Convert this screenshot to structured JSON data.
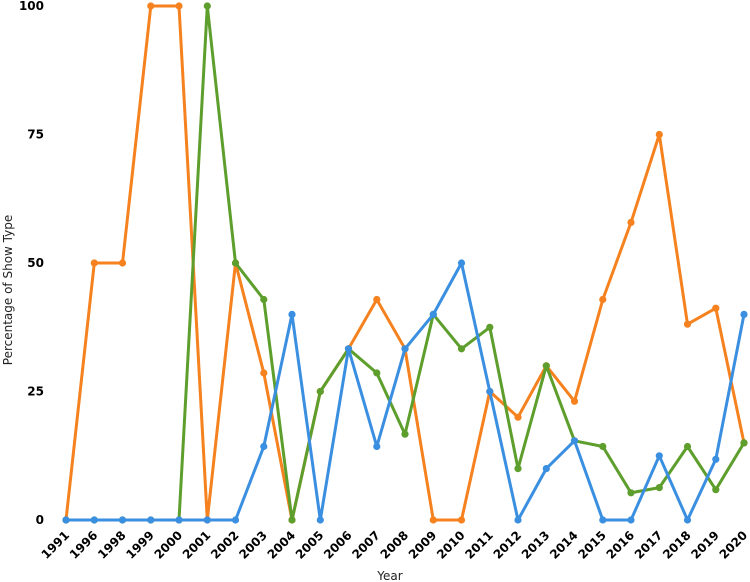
{
  "chart_data": {
    "type": "line",
    "title": "",
    "xlabel": "Year",
    "ylabel": "Percentage of Show Type",
    "ylim": [
      0,
      100
    ],
    "yticks": [
      0,
      25,
      50,
      75,
      100
    ],
    "grid": false,
    "legend": "none",
    "categories": [
      "1991",
      "1996",
      "1998",
      "1999",
      "2000",
      "2001",
      "2002",
      "2003",
      "2004",
      "2005",
      "2006",
      "2007",
      "2008",
      "2009",
      "2010",
      "2011",
      "2012",
      "2013",
      "2014",
      "2015",
      "2016",
      "2017",
      "2018",
      "2019",
      "2020"
    ],
    "series": [
      {
        "color": "#f5821f",
        "values": [
          0,
          50,
          50,
          100,
          100,
          0,
          50,
          28.6,
          0,
          25,
          33.3,
          42.9,
          33.3,
          0,
          0,
          25,
          20,
          30,
          23.1,
          42.9,
          57.9,
          75,
          38.1,
          41.2,
          15
        ]
      },
      {
        "color": "#5d9e2d",
        "values": [
          0,
          0,
          0,
          0,
          0,
          100,
          50,
          42.9,
          0,
          25,
          33.3,
          28.6,
          16.7,
          40,
          33.3,
          37.5,
          10,
          30,
          15.4,
          14.3,
          5.3,
          6.3,
          14.3,
          5.9,
          15
        ]
      },
      {
        "color": "#3a8fe0",
        "values": [
          0,
          0,
          0,
          0,
          0,
          0,
          0,
          14.3,
          40,
          0,
          33.3,
          14.3,
          33.3,
          40,
          50,
          25,
          0,
          10,
          15.4,
          0,
          0,
          12.5,
          0,
          11.8,
          40
        ]
      }
    ]
  }
}
